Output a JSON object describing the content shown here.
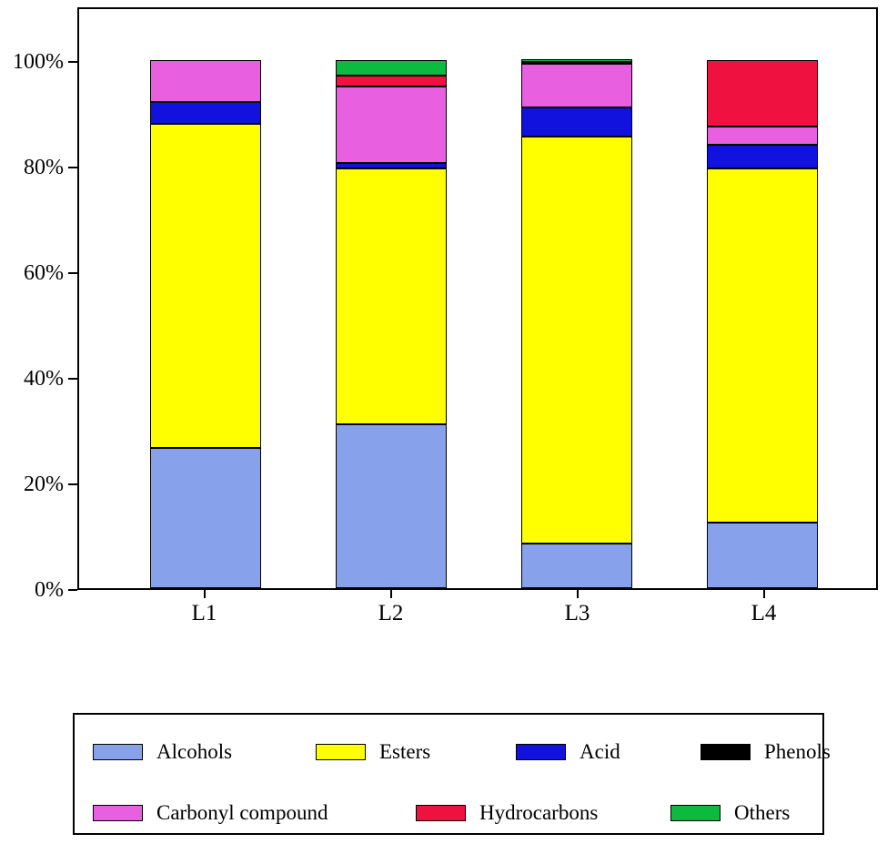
{
  "chart_data": {
    "type": "bar",
    "stacked": true,
    "percent": true,
    "title": "",
    "xlabel": "",
    "ylabel": "",
    "ylim": [
      0,
      100
    ],
    "grid": false,
    "legend_position": "bottom",
    "categories": [
      "L1",
      "L2",
      "L3",
      "L4"
    ],
    "ytick_labels": [
      {
        "label": "0%",
        "value": 0
      },
      {
        "label": "20%",
        "value": 20
      },
      {
        "label": "40%",
        "value": 40
      },
      {
        "label": "60%",
        "value": 60
      },
      {
        "label": "80%",
        "value": 80
      },
      {
        "label": "100%",
        "value": 100
      }
    ],
    "series": [
      {
        "name": "Alcohols",
        "color": "#87A1EA",
        "values": [
          26.5,
          31.0,
          8.5,
          12.5
        ]
      },
      {
        "name": "Esters",
        "color": "#FFFF00",
        "values": [
          61.5,
          48.5,
          77.0,
          67.0
        ]
      },
      {
        "name": "Acid",
        "color": "#1212DE",
        "values": [
          4.0,
          1.0,
          5.5,
          4.5
        ]
      },
      {
        "name": "Phenols",
        "color": "#000000",
        "values": [
          0,
          0,
          0,
          0
        ]
      },
      {
        "name": "Carbonyl compound",
        "color": "#E85FE0",
        "values": [
          8.0,
          14.5,
          8.3,
          3.5
        ]
      },
      {
        "name": "Hydrocarbons",
        "color": "#EF1240",
        "values": [
          0,
          2.0,
          0.2,
          12.5
        ]
      },
      {
        "name": "Others",
        "color": "#0CBA3F",
        "values": [
          0,
          3.0,
          0.5,
          0
        ]
      }
    ]
  },
  "legend": {
    "rows": [
      [
        "Alcohols",
        "Esters",
        "Acid",
        "Phenols"
      ],
      [
        "Carbonyl compound",
        "Hydrocarbons",
        "Others"
      ]
    ],
    "row1_offsets": [
      20,
      265,
      485,
      688
    ],
    "row2_offsets": [
      20,
      375,
      655
    ],
    "row1_y": 28,
    "row2_y": 95
  }
}
